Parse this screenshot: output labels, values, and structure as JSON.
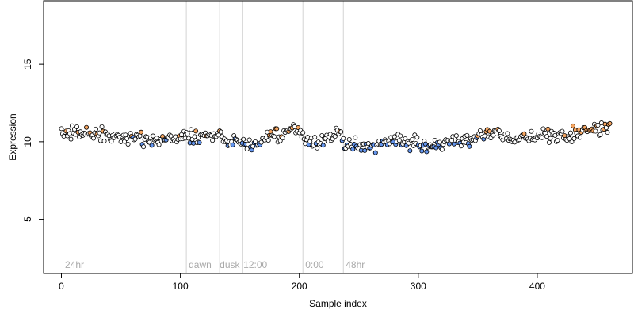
{
  "chart_data": {
    "type": "scatter",
    "xlabel": "Sample index",
    "ylabel": "Expression",
    "xlim": [
      -15,
      480
    ],
    "ylim": [
      1.5,
      19.1
    ],
    "xticks": [
      0,
      100,
      200,
      300,
      400
    ],
    "yticks": [
      5,
      10,
      15
    ],
    "grid": false,
    "n_points": 462,
    "baseline": 10.3,
    "colors": {
      "point_outline": "#000000",
      "point_fill_default": "#ffffff",
      "point_fill_high": "#f4a460",
      "point_fill_low": "#6495ed",
      "divider": "#d3d3d3",
      "region_label": "#aaaaaa"
    },
    "divider_x": [
      105,
      133,
      152,
      203,
      237
    ],
    "region_labels": [
      {
        "text": "24hr",
        "x": 3
      },
      {
        "text": "dawn",
        "x": 107
      },
      {
        "text": "dusk",
        "x": 133
      },
      {
        "text": "12:00",
        "x": 153
      },
      {
        "text": "0:00",
        "x": 205
      },
      {
        "text": "48hr",
        "x": 239
      }
    ],
    "trend": [
      {
        "x": 0,
        "y": 10.6
      },
      {
        "x": 30,
        "y": 10.5
      },
      {
        "x": 50,
        "y": 10.2
      },
      {
        "x": 65,
        "y": 10.3
      },
      {
        "x": 85,
        "y": 10.1
      },
      {
        "x": 100,
        "y": 10.3
      },
      {
        "x": 110,
        "y": 10.3
      },
      {
        "x": 125,
        "y": 10.4
      },
      {
        "x": 133,
        "y": 10.3
      },
      {
        "x": 140,
        "y": 10.1
      },
      {
        "x": 150,
        "y": 10.0
      },
      {
        "x": 158,
        "y": 9.7
      },
      {
        "x": 165,
        "y": 10.0
      },
      {
        "x": 180,
        "y": 10.4
      },
      {
        "x": 195,
        "y": 10.7
      },
      {
        "x": 202,
        "y": 10.6
      },
      {
        "x": 205,
        "y": 10.0
      },
      {
        "x": 215,
        "y": 10.0
      },
      {
        "x": 225,
        "y": 10.4
      },
      {
        "x": 235,
        "y": 10.6
      },
      {
        "x": 238,
        "y": 9.6
      },
      {
        "x": 245,
        "y": 9.8
      },
      {
        "x": 260,
        "y": 9.7
      },
      {
        "x": 270,
        "y": 9.9
      },
      {
        "x": 282,
        "y": 10.2
      },
      {
        "x": 295,
        "y": 9.9
      },
      {
        "x": 305,
        "y": 9.6
      },
      {
        "x": 318,
        "y": 9.7
      },
      {
        "x": 330,
        "y": 10.0
      },
      {
        "x": 340,
        "y": 9.9
      },
      {
        "x": 350,
        "y": 10.4
      },
      {
        "x": 360,
        "y": 10.6
      },
      {
        "x": 375,
        "y": 10.4
      },
      {
        "x": 385,
        "y": 10.2
      },
      {
        "x": 400,
        "y": 10.4
      },
      {
        "x": 420,
        "y": 10.3
      },
      {
        "x": 440,
        "y": 10.7
      },
      {
        "x": 461,
        "y": 10.9
      }
    ]
  }
}
